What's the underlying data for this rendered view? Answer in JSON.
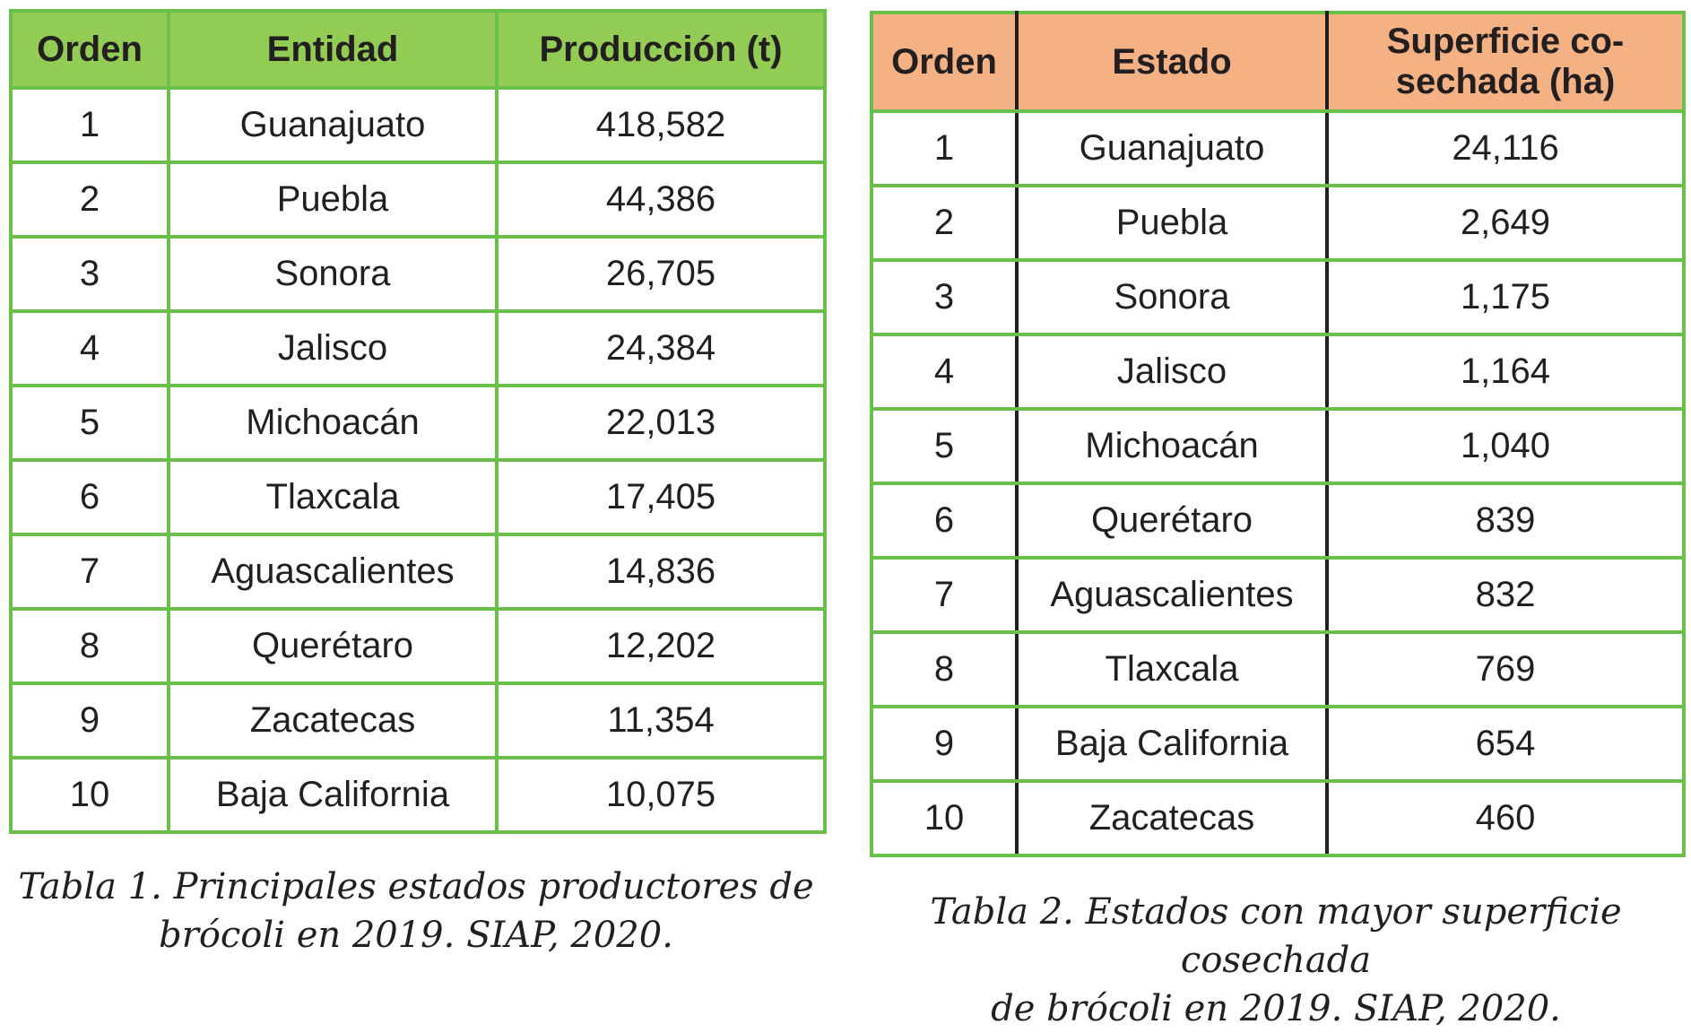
{
  "table1": {
    "headers": [
      "Orden",
      "Entidad",
      "Producción (t)"
    ],
    "rows": [
      [
        "1",
        "Guanajuato",
        "418,582"
      ],
      [
        "2",
        "Puebla",
        "44,386"
      ],
      [
        "3",
        "Sonora",
        "26,705"
      ],
      [
        "4",
        "Jalisco",
        "24,384"
      ],
      [
        "5",
        "Michoacán",
        "22,013"
      ],
      [
        "6",
        "Tlaxcala",
        "17,405"
      ],
      [
        "7",
        "Aguascalientes",
        "14,836"
      ],
      [
        "8",
        "Querétaro",
        "12,202"
      ],
      [
        "9",
        "Zacatecas",
        "11,354"
      ],
      [
        "10",
        "Baja California",
        "10,075"
      ]
    ],
    "caption": [
      "Tabla 1. Principales estados productores de",
      "brócoli en 2019. SIAP, 2020."
    ]
  },
  "table2": {
    "headers": [
      "Orden",
      "Estado",
      "Superficie co-",
      "sechada (ha)"
    ],
    "rows": [
      [
        "1",
        "Guanajuato",
        "24,116"
      ],
      [
        "2",
        "Puebla",
        "2,649"
      ],
      [
        "3",
        "Sonora",
        "1,175"
      ],
      [
        "4",
        "Jalisco",
        "1,164"
      ],
      [
        "5",
        "Michoacán",
        "1,040"
      ],
      [
        "6",
        "Querétaro",
        "839"
      ],
      [
        "7",
        "Aguascalientes",
        "832"
      ],
      [
        "8",
        "Tlaxcala",
        "769"
      ],
      [
        "9",
        "Baja California",
        "654"
      ],
      [
        "10",
        "Zacatecas",
        "460"
      ]
    ],
    "caption": [
      "Tabla 2. Estados con mayor superficie cosechada",
      "de brócoli en 2019. SIAP, 2020."
    ]
  },
  "colors": {
    "border_green": "#6abf4b",
    "header1_green": "#92cc55",
    "header2_orange": "#f4b183",
    "text": "#231f20"
  }
}
